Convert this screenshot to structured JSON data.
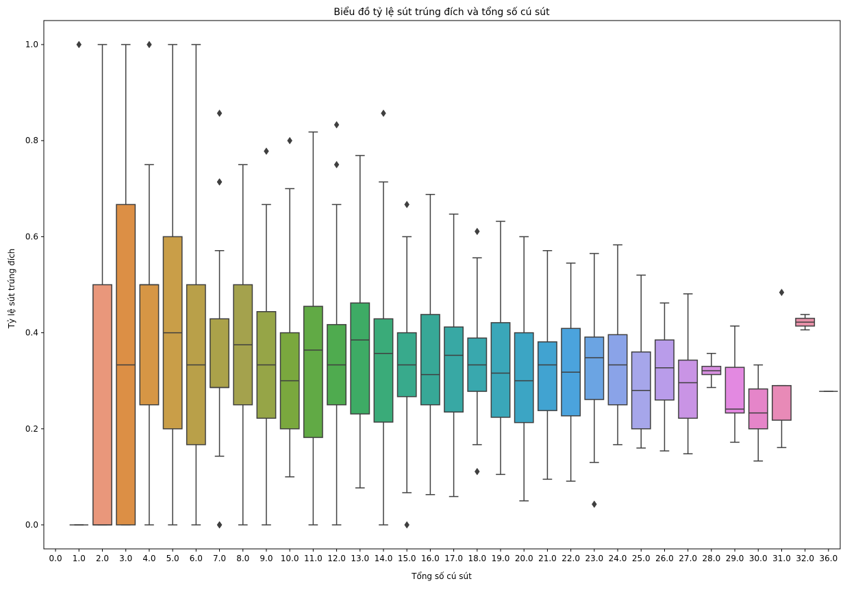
{
  "chart_data": {
    "type": "box",
    "title": "Biểu đồ tỷ lệ sút trúng đích và tổng số cú sút",
    "xlabel": "Tổng số cú sút",
    "ylabel": "Tỷ lệ sút trúng đích",
    "ylim": [
      -0.05,
      1.05
    ],
    "yticks": [
      0.0,
      0.2,
      0.4,
      0.6,
      0.8,
      1.0
    ],
    "ytick_labels": [
      "0.0",
      "0.2",
      "0.4",
      "0.6",
      "0.8",
      "1.0"
    ],
    "grid": false,
    "legend": "none",
    "categories": [
      "0.0",
      "1.0",
      "2.0",
      "3.0",
      "4.0",
      "5.0",
      "6.0",
      "7.0",
      "8.0",
      "9.0",
      "10.0",
      "11.0",
      "12.0",
      "13.0",
      "14.0",
      "15.0",
      "16.0",
      "17.0",
      "18.0",
      "19.0",
      "20.0",
      "21.0",
      "22.0",
      "23.0",
      "24.0",
      "25.0",
      "26.0",
      "27.0",
      "28.0",
      "29.0",
      "30.0",
      "31.0",
      "32.0",
      "36.0"
    ],
    "boxes": [
      {
        "category": "0.0",
        "min": null,
        "q1": null,
        "median": null,
        "q3": null,
        "max": null,
        "outliers": [],
        "color": "#e8837e"
      },
      {
        "category": "1.0",
        "min": 0.0,
        "q1": 0.0,
        "median": 0.0,
        "q3": 0.0,
        "max": 0.0,
        "outliers": [
          1.0
        ],
        "color": "#e8837e"
      },
      {
        "category": "2.0",
        "min": 0.0,
        "q1": 0.0,
        "median": 0.0,
        "q3": 0.5,
        "max": 1.0,
        "outliers": [],
        "color": "#e9977b"
      },
      {
        "category": "3.0",
        "min": 0.0,
        "q1": 0.0,
        "median": 0.333,
        "q3": 0.667,
        "max": 1.0,
        "outliers": [],
        "color": "#dc8f45"
      },
      {
        "category": "4.0",
        "min": 0.0,
        "q1": 0.25,
        "median": 0.5,
        "q3": 0.5,
        "max": 0.75,
        "outliers": [
          1.0
        ],
        "color": "#d69645"
      },
      {
        "category": "5.0",
        "min": 0.0,
        "q1": 0.2,
        "median": 0.4,
        "q3": 0.6,
        "max": 1.0,
        "outliers": [],
        "color": "#c99e48"
      },
      {
        "category": "6.0",
        "min": 0.0,
        "q1": 0.167,
        "median": 0.333,
        "q3": 0.5,
        "max": 1.0,
        "outliers": [],
        "color": "#b9a049"
      },
      {
        "category": "7.0",
        "min": 0.143,
        "q1": 0.286,
        "median": 0.286,
        "q3": 0.429,
        "max": 0.571,
        "outliers": [
          0.0,
          0.0,
          0.714,
          0.714,
          0.857
        ],
        "color": "#aba24a"
      },
      {
        "category": "8.0",
        "min": 0.0,
        "q1": 0.25,
        "median": 0.375,
        "q3": 0.5,
        "max": 0.75,
        "outliers": [],
        "color": "#a4a24d"
      },
      {
        "category": "9.0",
        "min": 0.0,
        "q1": 0.222,
        "median": 0.333,
        "q3": 0.444,
        "max": 0.667,
        "outliers": [
          0.778
        ],
        "color": "#96a547"
      },
      {
        "category": "10.0",
        "min": 0.1,
        "q1": 0.2,
        "median": 0.3,
        "q3": 0.4,
        "max": 0.7,
        "outliers": [
          0.8
        ],
        "color": "#7aa83e"
      },
      {
        "category": "11.0",
        "min": 0.0,
        "q1": 0.182,
        "median": 0.364,
        "q3": 0.455,
        "max": 0.818,
        "outliers": [],
        "color": "#61aa45"
      },
      {
        "category": "12.0",
        "min": 0.0,
        "q1": 0.25,
        "median": 0.333,
        "q3": 0.417,
        "max": 0.667,
        "outliers": [
          0.75,
          0.833
        ],
        "color": "#4fab4f"
      },
      {
        "category": "13.0",
        "min": 0.077,
        "q1": 0.231,
        "median": 0.385,
        "q3": 0.462,
        "max": 0.769,
        "outliers": [],
        "color": "#3eab65"
      },
      {
        "category": "14.0",
        "min": 0.0,
        "q1": 0.214,
        "median": 0.357,
        "q3": 0.429,
        "max": 0.714,
        "outliers": [
          0.857
        ],
        "color": "#3aab79"
      },
      {
        "category": "15.0",
        "min": 0.067,
        "q1": 0.267,
        "median": 0.333,
        "q3": 0.4,
        "max": 0.6,
        "outliers": [
          0.0,
          0.667
        ],
        "color": "#38aa8c"
      },
      {
        "category": "16.0",
        "min": 0.063,
        "q1": 0.25,
        "median": 0.313,
        "q3": 0.438,
        "max": 0.688,
        "outliers": [],
        "color": "#37a897"
      },
      {
        "category": "17.0",
        "min": 0.059,
        "q1": 0.235,
        "median": 0.353,
        "q3": 0.412,
        "max": 0.647,
        "outliers": [],
        "color": "#38a8a4"
      },
      {
        "category": "18.0",
        "min": 0.167,
        "q1": 0.278,
        "median": 0.333,
        "q3": 0.389,
        "max": 0.556,
        "outliers": [
          0.111,
          0.611
        ],
        "color": "#39a8ae"
      },
      {
        "category": "19.0",
        "min": 0.105,
        "q1": 0.224,
        "median": 0.316,
        "q3": 0.421,
        "max": 0.632,
        "outliers": [],
        "color": "#3aa7b9"
      },
      {
        "category": "20.0",
        "min": 0.05,
        "q1": 0.213,
        "median": 0.3,
        "q3": 0.4,
        "max": 0.6,
        "outliers": [],
        "color": "#3ca5c4"
      },
      {
        "category": "21.0",
        "min": 0.095,
        "q1": 0.238,
        "median": 0.333,
        "q3": 0.381,
        "max": 0.571,
        "outliers": [],
        "color": "#41a3d1"
      },
      {
        "category": "22.0",
        "min": 0.091,
        "q1": 0.227,
        "median": 0.318,
        "q3": 0.409,
        "max": 0.545,
        "outliers": [],
        "color": "#4ba3dd"
      },
      {
        "category": "23.0",
        "min": 0.13,
        "q1": 0.261,
        "median": 0.348,
        "q3": 0.391,
        "max": 0.565,
        "outliers": [
          0.043
        ],
        "color": "#6ba4e3"
      },
      {
        "category": "24.0",
        "min": 0.167,
        "q1": 0.25,
        "median": 0.333,
        "q3": 0.396,
        "max": 0.583,
        "outliers": [],
        "color": "#8aa3e8"
      },
      {
        "category": "25.0",
        "min": 0.16,
        "q1": 0.2,
        "median": 0.28,
        "q3": 0.36,
        "max": 0.52,
        "outliers": [],
        "color": "#a6a6ea"
      },
      {
        "category": "26.0",
        "min": 0.154,
        "q1": 0.26,
        "median": 0.327,
        "q3": 0.385,
        "max": 0.462,
        "outliers": [],
        "color": "#b99cea"
      },
      {
        "category": "27.0",
        "min": 0.148,
        "q1": 0.222,
        "median": 0.296,
        "q3": 0.343,
        "max": 0.481,
        "outliers": [],
        "color": "#c994e5"
      },
      {
        "category": "28.0",
        "min": 0.286,
        "q1": 0.313,
        "median": 0.321,
        "q3": 0.33,
        "max": 0.357,
        "outliers": [],
        "color": "#d78fe0"
      },
      {
        "category": "29.0",
        "min": 0.172,
        "q1": 0.233,
        "median": 0.241,
        "q3": 0.328,
        "max": 0.414,
        "outliers": [],
        "color": "#e389e1"
      },
      {
        "category": "30.0",
        "min": 0.133,
        "q1": 0.2,
        "median": 0.233,
        "q3": 0.283,
        "max": 0.333,
        "outliers": [],
        "color": "#e585c9"
      },
      {
        "category": "31.0",
        "min": 0.161,
        "q1": 0.218,
        "median": 0.29,
        "q3": 0.29,
        "max": 0.29,
        "outliers": [
          0.484
        ],
        "color": "#e88ab7"
      },
      {
        "category": "32.0",
        "min": 0.406,
        "q1": 0.414,
        "median": 0.422,
        "q3": 0.43,
        "max": 0.438,
        "outliers": [],
        "color": "#e790a8"
      },
      {
        "category": "36.0",
        "min": 0.278,
        "q1": 0.278,
        "median": 0.278,
        "q3": 0.278,
        "max": 0.278,
        "outliers": [],
        "color": "#e8889a"
      }
    ]
  }
}
